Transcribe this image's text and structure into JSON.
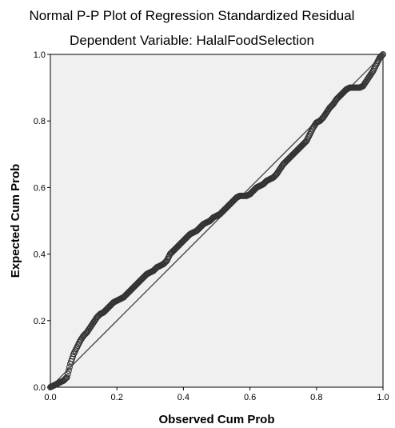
{
  "chart_data": {
    "type": "scatter",
    "title": "Normal P-P Plot of Regression Standardized Residual",
    "subtitle": "Dependent Variable: HalalFoodSelection",
    "xlabel": "Observed Cum Prob",
    "ylabel": "Expected Cum Prob",
    "xlim": [
      0,
      1
    ],
    "ylim": [
      0,
      1
    ],
    "x_ticks": [
      "0.0",
      "0.2",
      "0.4",
      "0.6",
      "0.8",
      "1.0"
    ],
    "y_ticks": [
      "0.0",
      "0.2",
      "0.4",
      "0.6",
      "0.8",
      "1.0"
    ],
    "grid": false,
    "plot_background": "#f0f0f0",
    "marker": "hollow-circle",
    "marker_color": "#333333",
    "reference_line": {
      "from": [
        0,
        0
      ],
      "to": [
        1,
        1
      ],
      "color": "#333333"
    },
    "series": [
      {
        "values": [
          [
            0.0,
            0.0
          ],
          [
            0.01,
            0.005
          ],
          [
            0.02,
            0.01
          ],
          [
            0.03,
            0.015
          ],
          [
            0.04,
            0.02
          ],
          [
            0.05,
            0.03
          ],
          [
            0.06,
            0.07
          ],
          [
            0.07,
            0.1
          ],
          [
            0.08,
            0.12
          ],
          [
            0.09,
            0.14
          ],
          [
            0.1,
            0.155
          ],
          [
            0.11,
            0.165
          ],
          [
            0.12,
            0.18
          ],
          [
            0.13,
            0.195
          ],
          [
            0.14,
            0.21
          ],
          [
            0.15,
            0.22
          ],
          [
            0.16,
            0.225
          ],
          [
            0.17,
            0.235
          ],
          [
            0.18,
            0.245
          ],
          [
            0.19,
            0.255
          ],
          [
            0.2,
            0.26
          ],
          [
            0.21,
            0.265
          ],
          [
            0.22,
            0.27
          ],
          [
            0.23,
            0.28
          ],
          [
            0.24,
            0.29
          ],
          [
            0.25,
            0.3
          ],
          [
            0.26,
            0.31
          ],
          [
            0.27,
            0.32
          ],
          [
            0.28,
            0.33
          ],
          [
            0.29,
            0.34
          ],
          [
            0.3,
            0.345
          ],
          [
            0.31,
            0.35
          ],
          [
            0.32,
            0.36
          ],
          [
            0.33,
            0.365
          ],
          [
            0.34,
            0.37
          ],
          [
            0.35,
            0.38
          ],
          [
            0.36,
            0.4
          ],
          [
            0.37,
            0.41
          ],
          [
            0.38,
            0.42
          ],
          [
            0.39,
            0.43
          ],
          [
            0.4,
            0.44
          ],
          [
            0.41,
            0.45
          ],
          [
            0.42,
            0.46
          ],
          [
            0.43,
            0.465
          ],
          [
            0.44,
            0.47
          ],
          [
            0.45,
            0.48
          ],
          [
            0.46,
            0.49
          ],
          [
            0.47,
            0.495
          ],
          [
            0.48,
            0.5
          ],
          [
            0.49,
            0.51
          ],
          [
            0.5,
            0.515
          ],
          [
            0.51,
            0.52
          ],
          [
            0.52,
            0.53
          ],
          [
            0.53,
            0.54
          ],
          [
            0.54,
            0.55
          ],
          [
            0.55,
            0.56
          ],
          [
            0.56,
            0.57
          ],
          [
            0.57,
            0.575
          ],
          [
            0.58,
            0.575
          ],
          [
            0.59,
            0.575
          ],
          [
            0.6,
            0.58
          ],
          [
            0.61,
            0.59
          ],
          [
            0.62,
            0.6
          ],
          [
            0.63,
            0.605
          ],
          [
            0.64,
            0.61
          ],
          [
            0.65,
            0.62
          ],
          [
            0.66,
            0.625
          ],
          [
            0.67,
            0.63
          ],
          [
            0.68,
            0.64
          ],
          [
            0.69,
            0.655
          ],
          [
            0.7,
            0.67
          ],
          [
            0.71,
            0.68
          ],
          [
            0.72,
            0.69
          ],
          [
            0.73,
            0.7
          ],
          [
            0.74,
            0.71
          ],
          [
            0.75,
            0.72
          ],
          [
            0.76,
            0.73
          ],
          [
            0.77,
            0.74
          ],
          [
            0.78,
            0.76
          ],
          [
            0.79,
            0.78
          ],
          [
            0.8,
            0.795
          ],
          [
            0.81,
            0.8
          ],
          [
            0.82,
            0.81
          ],
          [
            0.83,
            0.825
          ],
          [
            0.84,
            0.84
          ],
          [
            0.85,
            0.85
          ],
          [
            0.86,
            0.865
          ],
          [
            0.87,
            0.875
          ],
          [
            0.88,
            0.885
          ],
          [
            0.89,
            0.895
          ],
          [
            0.9,
            0.9
          ],
          [
            0.91,
            0.9
          ],
          [
            0.92,
            0.9
          ],
          [
            0.93,
            0.9
          ],
          [
            0.94,
            0.905
          ],
          [
            0.95,
            0.92
          ],
          [
            0.96,
            0.935
          ],
          [
            0.97,
            0.95
          ],
          [
            0.98,
            0.97
          ],
          [
            0.99,
            0.99
          ],
          [
            1.0,
            1.0
          ]
        ]
      }
    ]
  }
}
